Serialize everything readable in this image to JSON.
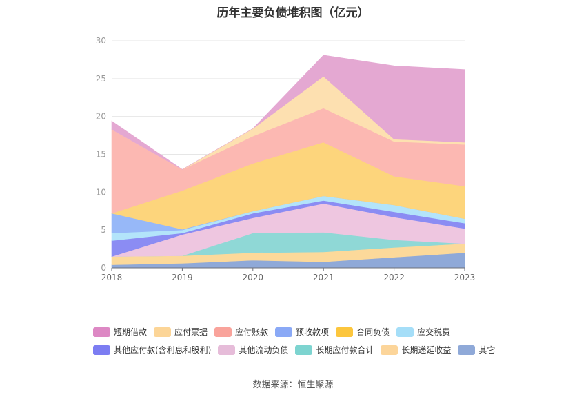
{
  "title": "历年主要负债堆积图（亿元）",
  "source": "数据来源：恒生聚源",
  "chart_data": {
    "type": "area",
    "stacked": true,
    "title": "历年主要负债堆积图（亿元）",
    "x": [
      "2018",
      "2019",
      "2020",
      "2021",
      "2022",
      "2023"
    ],
    "ylim": [
      0,
      30
    ],
    "yticks": [
      0,
      5,
      10,
      15,
      20,
      25,
      30
    ],
    "grid": true,
    "legend_position": "bottom",
    "series": [
      {
        "name": "其它",
        "color": "#8fa9d8",
        "values": [
          0.4,
          0.6,
          1.0,
          0.8,
          1.4,
          2.0
        ]
      },
      {
        "name": "长期递延收益",
        "color": "#fcd99a",
        "values": [
          1.1,
          1.0,
          1.0,
          1.3,
          1.3,
          1.2
        ]
      },
      {
        "name": "长期应付款合计",
        "color": "#8fd8d6",
        "values": [
          0.0,
          0.0,
          2.6,
          2.6,
          1.0,
          0.0
        ]
      },
      {
        "name": "其他流动负债",
        "color": "#eec6e0",
        "values": [
          0.0,
          2.8,
          2.0,
          3.8,
          3.0,
          2.0
        ]
      },
      {
        "name": "其他应付款(含利息和股利)",
        "color": "#8b8cf3",
        "values": [
          2.1,
          0.2,
          0.6,
          0.4,
          0.7,
          0.7
        ]
      },
      {
        "name": "应交税费",
        "color": "#b3e4fa",
        "values": [
          1.0,
          0.4,
          0.3,
          0.6,
          0.9,
          0.6
        ]
      },
      {
        "name": "预收款项",
        "color": "#97b8f8",
        "values": [
          2.6,
          0.1,
          0.0,
          0.0,
          0.0,
          0.0
        ]
      },
      {
        "name": "合同负债",
        "color": "#fdd57c",
        "values": [
          0.0,
          5.1,
          6.3,
          7.1,
          3.8,
          4.3
        ]
      },
      {
        "name": "应付账款",
        "color": "#fcb8b2",
        "values": [
          11.1,
          2.8,
          3.6,
          4.5,
          4.6,
          5.5
        ]
      },
      {
        "name": "应付票据",
        "color": "#fde0b0",
        "values": [
          0.0,
          0.0,
          1.0,
          4.2,
          0.3,
          0.3
        ]
      },
      {
        "name": "短期借款",
        "color": "#e4a8d2",
        "values": [
          1.1,
          0.0,
          0.0,
          2.8,
          9.7,
          9.6
        ]
      }
    ]
  },
  "legend": [
    {
      "label": "短期借款",
      "color": "#dd88c4"
    },
    {
      "label": "应付票据",
      "color": "#fcd597"
    },
    {
      "label": "应付账款",
      "color": "#f9a39b"
    },
    {
      "label": "预收款项",
      "color": "#8aa9f6"
    },
    {
      "label": "合同负债",
      "color": "#fcc63d"
    },
    {
      "label": "应交税费",
      "color": "#a5def8"
    },
    {
      "label": "其他应付款(含利息和股利)",
      "color": "#7c7df2"
    },
    {
      "label": "其他流动负债",
      "color": "#e6bcd9"
    },
    {
      "label": "长期应付款合计",
      "color": "#7dd4d0"
    },
    {
      "label": "长期递延收益",
      "color": "#fcd59a"
    },
    {
      "label": "其它",
      "color": "#8fa9d8"
    }
  ]
}
